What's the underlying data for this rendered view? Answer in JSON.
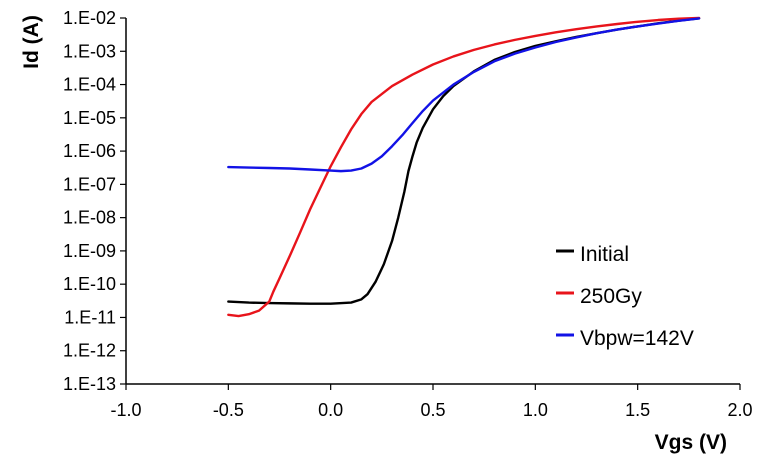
{
  "chart_data": {
    "type": "line",
    "title": "",
    "xlabel": "Vgs (V)",
    "ylabel": "Id (A)",
    "xscale": "linear",
    "yscale": "log",
    "xlim": [
      -1.0,
      2.0
    ],
    "ylim": [
      1e-13,
      0.01
    ],
    "x_ticks": [
      -1.0,
      -0.5,
      0.0,
      0.5,
      1.0,
      1.5,
      2.0
    ],
    "x_tick_labels": [
      "-1.0",
      "-0.5",
      "0.0",
      "0.5",
      "1.0",
      "1.5",
      "2.0"
    ],
    "y_ticks": [
      0.01,
      0.001,
      0.0001,
      1e-05,
      1e-06,
      1e-07,
      1e-08,
      1e-09,
      1e-10,
      1e-11,
      1e-12,
      1e-13
    ],
    "y_tick_labels": [
      "1.E-02",
      "1.E-03",
      "1.E-04",
      "1.E-05",
      "1.E-06",
      "1.E-07",
      "1.E-08",
      "1.E-09",
      "1.E-10",
      "1.E-11",
      "1.E-12",
      "1.E-13"
    ],
    "grid": false,
    "legend_position": "lower-right",
    "series": [
      {
        "name": "Initial",
        "color": "#000000",
        "points": [
          [
            -0.5,
            3e-11
          ],
          [
            -0.4,
            2.8e-11
          ],
          [
            -0.3,
            2.7e-11
          ],
          [
            -0.2,
            2.65e-11
          ],
          [
            -0.1,
            2.6e-11
          ],
          [
            0.0,
            2.6e-11
          ],
          [
            0.1,
            2.8e-11
          ],
          [
            0.15,
            3.5e-11
          ],
          [
            0.18,
            5e-11
          ],
          [
            0.22,
            1.2e-10
          ],
          [
            0.26,
            4e-10
          ],
          [
            0.3,
            2e-09
          ],
          [
            0.33,
            1e-08
          ],
          [
            0.36,
            6e-08
          ],
          [
            0.38,
            2.5e-07
          ],
          [
            0.4,
            7e-07
          ],
          [
            0.42,
            1.8e-06
          ],
          [
            0.45,
            5e-06
          ],
          [
            0.5,
            1.8e-05
          ],
          [
            0.55,
            4.5e-05
          ],
          [
            0.6,
            9e-05
          ],
          [
            0.7,
            0.00025
          ],
          [
            0.8,
            0.00055
          ],
          [
            0.9,
            0.00095
          ],
          [
            1.0,
            0.00145
          ],
          [
            1.1,
            0.002
          ],
          [
            1.2,
            0.0027
          ],
          [
            1.3,
            0.0035
          ],
          [
            1.4,
            0.0045
          ],
          [
            1.5,
            0.0056
          ],
          [
            1.6,
            0.0069
          ],
          [
            1.7,
            0.0083
          ],
          [
            1.8,
            0.0098
          ]
        ]
      },
      {
        "name": "250Gy",
        "color": "#e8141b",
        "points": [
          [
            -0.5,
            1.2e-11
          ],
          [
            -0.45,
            1.1e-11
          ],
          [
            -0.4,
            1.25e-11
          ],
          [
            -0.35,
            1.6e-11
          ],
          [
            -0.3,
            3e-11
          ],
          [
            -0.28,
            6e-11
          ],
          [
            -0.25,
            1.5e-10
          ],
          [
            -0.2,
            7e-10
          ],
          [
            -0.15,
            3.5e-09
          ],
          [
            -0.1,
            1.8e-08
          ],
          [
            -0.05,
            8e-08
          ],
          [
            0.0,
            3.5e-07
          ],
          [
            0.05,
            1.3e-06
          ],
          [
            0.1,
            4.5e-06
          ],
          [
            0.15,
            1.3e-05
          ],
          [
            0.2,
            3e-05
          ],
          [
            0.3,
            9e-05
          ],
          [
            0.4,
            0.0002
          ],
          [
            0.5,
            0.0004
          ],
          [
            0.6,
            0.0007
          ],
          [
            0.7,
            0.0011
          ],
          [
            0.8,
            0.0016
          ],
          [
            0.9,
            0.0022
          ],
          [
            1.0,
            0.0029
          ],
          [
            1.1,
            0.0037
          ],
          [
            1.2,
            0.0046
          ],
          [
            1.3,
            0.0056
          ],
          [
            1.4,
            0.0066
          ],
          [
            1.5,
            0.0077
          ],
          [
            1.6,
            0.0087
          ],
          [
            1.7,
            0.0095
          ],
          [
            1.8,
            0.01
          ]
        ]
      },
      {
        "name": "Vbpw=142V",
        "color": "#1212e6",
        "points": [
          [
            -0.5,
            3.3e-07
          ],
          [
            -0.4,
            3.2e-07
          ],
          [
            -0.3,
            3.1e-07
          ],
          [
            -0.2,
            3e-07
          ],
          [
            -0.1,
            2.8e-07
          ],
          [
            0.0,
            2.6e-07
          ],
          [
            0.05,
            2.5e-07
          ],
          [
            0.1,
            2.6e-07
          ],
          [
            0.15,
            3e-07
          ],
          [
            0.2,
            4.2e-07
          ],
          [
            0.25,
            7e-07
          ],
          [
            0.3,
            1.4e-06
          ],
          [
            0.35,
            3e-06
          ],
          [
            0.4,
            7e-06
          ],
          [
            0.45,
            1.6e-05
          ],
          [
            0.5,
            3.3e-05
          ],
          [
            0.6,
            0.0001
          ],
          [
            0.7,
            0.00024
          ],
          [
            0.8,
            0.0005
          ],
          [
            0.9,
            0.00085
          ],
          [
            1.0,
            0.0013
          ],
          [
            1.1,
            0.0019
          ],
          [
            1.2,
            0.0026
          ],
          [
            1.3,
            0.0035
          ],
          [
            1.4,
            0.0045
          ],
          [
            1.5,
            0.0056
          ],
          [
            1.6,
            0.0068
          ],
          [
            1.7,
            0.0082
          ],
          [
            1.8,
            0.0097
          ]
        ]
      }
    ]
  }
}
